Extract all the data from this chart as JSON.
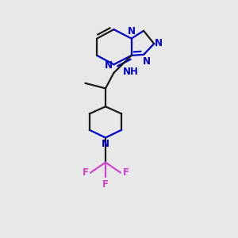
{
  "bg_color": "#e8e8e8",
  "bond_color": "#1a1a1a",
  "N_color": "#0000cc",
  "F_color": "#cc44cc",
  "line_width": 1.6,
  "figsize": [
    3.0,
    3.0
  ],
  "dpi": 100,
  "xlim": [
    0.1,
    0.9
  ],
  "ylim": [
    0.05,
    0.95
  ]
}
